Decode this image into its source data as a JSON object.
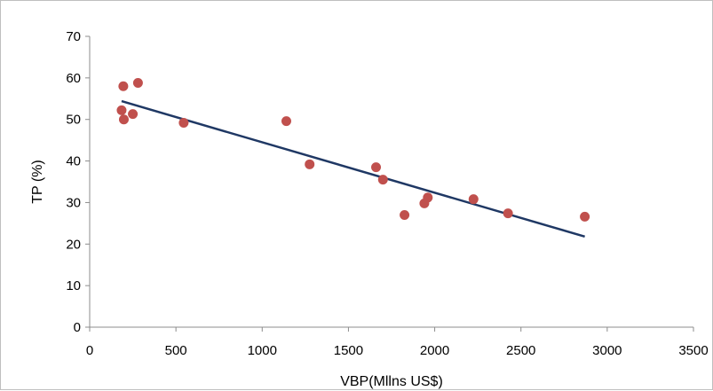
{
  "chart_data": {
    "type": "scatter",
    "title": "",
    "xlabel": "VBP(Mllns US$)",
    "ylabel": "TP (%)",
    "xlim": [
      0,
      3500
    ],
    "ylim": [
      0,
      70
    ],
    "x_ticks": [
      0,
      500,
      1000,
      1500,
      2000,
      2500,
      3000,
      3500
    ],
    "y_ticks": [
      0,
      10,
      20,
      30,
      40,
      50,
      60,
      70
    ],
    "grid": false,
    "legend": "none",
    "point_color": "#c0504d",
    "trendline_color": "#1f3864",
    "points": [
      {
        "x": 185,
        "y": 52.2
      },
      {
        "x": 195,
        "y": 58.0
      },
      {
        "x": 198,
        "y": 50.0
      },
      {
        "x": 250,
        "y": 51.3
      },
      {
        "x": 280,
        "y": 58.8
      },
      {
        "x": 545,
        "y": 49.2
      },
      {
        "x": 1140,
        "y": 49.6
      },
      {
        "x": 1275,
        "y": 39.2
      },
      {
        "x": 1660,
        "y": 38.5
      },
      {
        "x": 1700,
        "y": 35.5
      },
      {
        "x": 1825,
        "y": 27.0
      },
      {
        "x": 1940,
        "y": 29.8
      },
      {
        "x": 1960,
        "y": 31.2
      },
      {
        "x": 2225,
        "y": 30.8
      },
      {
        "x": 2425,
        "y": 27.4
      },
      {
        "x": 2870,
        "y": 26.6
      }
    ],
    "trendline": {
      "x": [
        185,
        2870
      ],
      "y": [
        54.4,
        21.8
      ]
    }
  }
}
